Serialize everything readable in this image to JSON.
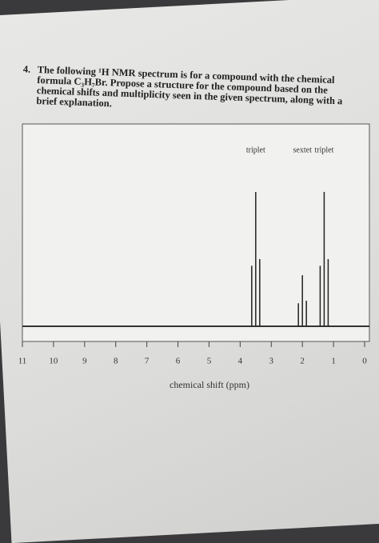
{
  "question": {
    "number": "4.",
    "text": "The following ¹H NMR spectrum is for a compound with the chemical formula C₃H₇Br. Propose a structure for the compound based on the chemical shifts and multiplicity seen in the given spectrum, along with a brief explanation."
  },
  "chart_data": {
    "type": "nmr",
    "xlabel": "chemical shift (ppm)",
    "xlim": [
      11,
      0
    ],
    "xticks": [
      11,
      10,
      9,
      8,
      7,
      6,
      5,
      4,
      3,
      2,
      1,
      0
    ],
    "peaks": [
      {
        "label": "triplet",
        "x": 3.5,
        "height": 100
      },
      {
        "label": "sextet",
        "x": 2.0,
        "height": 38
      },
      {
        "label": "triplet",
        "x": 1.3,
        "height": 100
      }
    ]
  }
}
